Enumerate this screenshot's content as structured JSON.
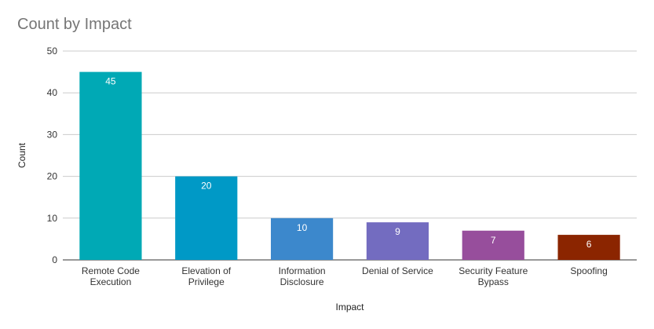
{
  "chart_data": {
    "type": "bar",
    "title": "Count by Impact",
    "xlabel": "Impact",
    "ylabel": "Count",
    "ylim": [
      0,
      50
    ],
    "yticks": [
      0,
      10,
      20,
      30,
      40,
      50
    ],
    "grid": true,
    "legend": "none",
    "categories": [
      [
        "Remote Code",
        "Execution"
      ],
      [
        "Elevation of",
        "Privilege"
      ],
      [
        "Information",
        "Disclosure"
      ],
      [
        "Denial of Service"
      ],
      [
        "Security Feature",
        "Bypass"
      ],
      [
        "Spoofing"
      ]
    ],
    "values": [
      45,
      20,
      10,
      9,
      7,
      6
    ],
    "colors": [
      "#00a9b5",
      "#0099c6",
      "#3c88cc",
      "#736cc0",
      "#974e9c",
      "#8b2500"
    ]
  }
}
